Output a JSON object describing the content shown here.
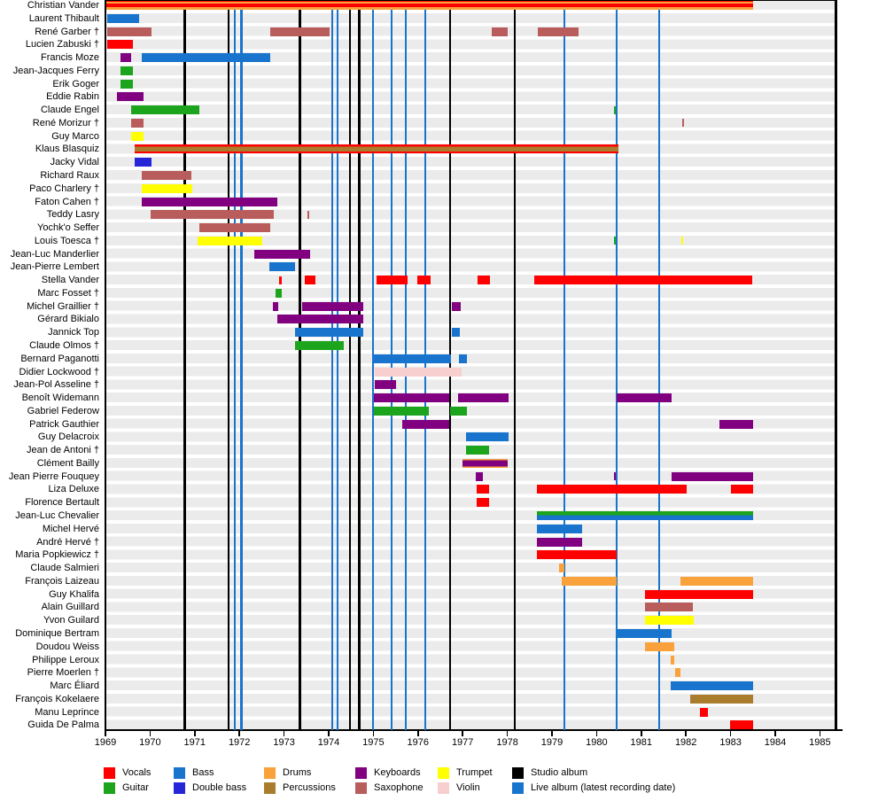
{
  "chart_data": {
    "type": "timeline",
    "title": "",
    "xlim": [
      1969,
      1985.37
    ],
    "x_ticks": [
      1969,
      1970,
      1971,
      1972,
      1973,
      1974,
      1975,
      1976,
      1977,
      1978,
      1979,
      1980,
      1981,
      1982,
      1983,
      1984,
      1985
    ],
    "instrument_colors": {
      "vocals": "#FF0000",
      "guitar": "#1CA51C",
      "bass": "#1874CD",
      "double_bass": "#2626D8",
      "drums": "#F9A13A",
      "percussions": "#AA7D2E",
      "keyboards": "#800080",
      "saxophone": "#B85C5C",
      "trumpet": "#FFFF00",
      "violin": "#F7CFCF",
      "studio": "#000000",
      "live": "#1874CD"
    },
    "album_lines": {
      "studio": [
        1970.77,
        1971.76,
        1973.35,
        1974.48,
        1974.69,
        1976.72,
        1978.17
      ],
      "live": [
        1971.9,
        1972.04,
        1974.08,
        1974.2,
        1974.99,
        1975.41,
        1975.73,
        1976.16,
        1979.28,
        1980.45,
        1981.4
      ]
    },
    "members": [
      {
        "name": "Christian Vander",
        "bars": [
          {
            "from": 1969.0,
            "to": 1983.5,
            "layers": [
              [
                "vocals",
                0,
                12
              ],
              [
                "drums",
                12,
                30
              ],
              [
                "vocals",
                30,
                72
              ],
              [
                "drums",
                72,
                100
              ]
            ]
          }
        ]
      },
      {
        "name": "Laurent Thibault",
        "bars": [
          {
            "from": 1969.04,
            "to": 1969.75,
            "color": "bass"
          }
        ]
      },
      {
        "name": "René Garber †",
        "bars": [
          {
            "from": 1969.04,
            "to": 1970.03,
            "color": "saxophone"
          },
          {
            "from": 1972.69,
            "to": 1974.02,
            "color": "saxophone"
          },
          {
            "from": 1977.65,
            "to": 1978.01,
            "color": "saxophone"
          },
          {
            "from": 1978.68,
            "to": 1979.6,
            "color": "saxophone"
          }
        ]
      },
      {
        "name": "Lucien Zabuski †",
        "bars": [
          {
            "from": 1969.04,
            "to": 1969.62,
            "color": "vocals"
          }
        ]
      },
      {
        "name": "Francis Moze",
        "bars": [
          {
            "from": 1969.34,
            "to": 1969.58,
            "color": "keyboards"
          },
          {
            "from": 1969.81,
            "to": 1972.69,
            "color": "bass"
          }
        ]
      },
      {
        "name": "Jean-Jacques Ferry",
        "bars": [
          {
            "from": 1969.34,
            "to": 1969.62,
            "color": "guitar"
          }
        ]
      },
      {
        "name": "Erik Goger",
        "bars": [
          {
            "from": 1969.34,
            "to": 1969.62,
            "color": "guitar"
          }
        ]
      },
      {
        "name": "Eddie Rabin",
        "bars": [
          {
            "from": 1969.26,
            "to": 1969.85,
            "color": "keyboards"
          }
        ]
      },
      {
        "name": "Claude Engel",
        "bars": [
          {
            "from": 1969.58,
            "to": 1971.1,
            "color": "guitar"
          },
          {
            "at": 1980.41,
            "color": "guitar",
            "tick": true
          }
        ]
      },
      {
        "name": "René Morizur †",
        "bars": [
          {
            "from": 1969.58,
            "to": 1969.85,
            "color": "saxophone"
          },
          {
            "at": 1981.94,
            "color": "saxophone",
            "tick": true
          }
        ]
      },
      {
        "name": "Guy Marco",
        "bars": [
          {
            "from": 1969.58,
            "to": 1969.85,
            "color": "trumpet"
          }
        ]
      },
      {
        "name": "Klaus Blasquiz",
        "bars": [
          {
            "from": 1969.65,
            "to": 1980.49,
            "layers": [
              [
                "vocals",
                0,
                25
              ],
              [
                "percussions",
                25,
                78
              ],
              [
                "vocals",
                78,
                100
              ]
            ]
          }
        ]
      },
      {
        "name": "Jacky Vidal",
        "bars": [
          {
            "from": 1969.65,
            "to": 1970.03,
            "color": "double_bass"
          }
        ]
      },
      {
        "name": "Richard Raux",
        "bars": [
          {
            "from": 1969.81,
            "to": 1970.92,
            "color": "saxophone"
          }
        ]
      },
      {
        "name": "Paco Charlery †",
        "bars": [
          {
            "from": 1969.81,
            "to": 1970.94,
            "color": "trumpet"
          }
        ]
      },
      {
        "name": "Faton Cahen †",
        "bars": [
          {
            "from": 1969.81,
            "to": 1972.85,
            "color": "keyboards"
          }
        ]
      },
      {
        "name": "Teddy Lasry",
        "bars": [
          {
            "from": 1970.01,
            "to": 1972.77,
            "color": "saxophone"
          },
          {
            "at": 1973.54,
            "color": "saxophone",
            "tick": true
          }
        ]
      },
      {
        "name": "Yochk'o Seffer",
        "bars": [
          {
            "from": 1971.1,
            "to": 1972.69,
            "color": "saxophone"
          }
        ]
      },
      {
        "name": "Louis Toesca †",
        "bars": [
          {
            "from": 1971.06,
            "to": 1972.51,
            "color": "trumpet"
          },
          {
            "at": 1980.41,
            "color": "guitar",
            "tick": true
          },
          {
            "at": 1981.92,
            "color": "trumpet",
            "tick": true
          }
        ]
      },
      {
        "name": "Jean-Luc Manderlier",
        "bars": [
          {
            "from": 1972.33,
            "to": 1973.58,
            "color": "keyboards"
          }
        ]
      },
      {
        "name": "Jean-Pierre Lembert",
        "bars": [
          {
            "from": 1972.67,
            "to": 1973.25,
            "color": "bass"
          }
        ]
      },
      {
        "name": "Stella Vander",
        "bars": [
          {
            "at": 1972.92,
            "color": "vocals",
            "tick": true
          },
          {
            "from": 1973.46,
            "to": 1973.7,
            "color": "vocals"
          },
          {
            "from": 1975.07,
            "to": 1975.77,
            "color": "vocals"
          },
          {
            "from": 1975.98,
            "to": 1976.28,
            "color": "vocals"
          },
          {
            "from": 1977.33,
            "to": 1977.61,
            "color": "vocals"
          },
          {
            "from": 1978.6,
            "to": 1983.48,
            "color": "vocals"
          }
        ]
      },
      {
        "name": "Marc Fosset †",
        "bars": [
          {
            "from": 1972.81,
            "to": 1972.95,
            "color": "guitar"
          }
        ]
      },
      {
        "name": "Michel Graillier †",
        "bars": [
          {
            "from": 1972.75,
            "to": 1972.87,
            "color": "keyboards"
          },
          {
            "from": 1973.4,
            "to": 1974.77,
            "color": "keyboards"
          },
          {
            "from": 1976.76,
            "to": 1976.96,
            "color": "keyboards"
          }
        ]
      },
      {
        "name": "Gérard Bikialo",
        "bars": [
          {
            "from": 1972.85,
            "to": 1974.77,
            "color": "keyboards"
          }
        ]
      },
      {
        "name": "Jannick Top",
        "bars": [
          {
            "from": 1973.25,
            "to": 1974.77,
            "color": "bass"
          },
          {
            "from": 1976.76,
            "to": 1976.94,
            "color": "bass"
          }
        ]
      },
      {
        "name": "Claude Olmos †",
        "bars": [
          {
            "from": 1973.25,
            "to": 1974.34,
            "color": "guitar"
          }
        ]
      },
      {
        "name": "Bernard Paganotti",
        "bars": [
          {
            "from": 1974.97,
            "to": 1976.74,
            "color": "bass"
          },
          {
            "from": 1976.92,
            "to": 1977.1,
            "color": "bass"
          }
        ]
      },
      {
        "name": "Didier Lockwood †",
        "bars": [
          {
            "from": 1975.03,
            "to": 1976.98,
            "color": "violin"
          }
        ]
      },
      {
        "name": "Jean-Pol Asseline †",
        "bars": [
          {
            "from": 1975.03,
            "to": 1975.51,
            "color": "keyboards"
          }
        ]
      },
      {
        "name": "Benoît Widemann",
        "bars": [
          {
            "from": 1975.01,
            "to": 1976.7,
            "color": "keyboards"
          },
          {
            "from": 1976.9,
            "to": 1978.03,
            "color": "keyboards"
          },
          {
            "from": 1980.45,
            "to": 1981.68,
            "color": "keyboards"
          }
        ]
      },
      {
        "name": "Gabriel Federow",
        "bars": [
          {
            "from": 1975.01,
            "to": 1976.24,
            "color": "guitar"
          },
          {
            "from": 1976.72,
            "to": 1977.1,
            "color": "guitar"
          }
        ]
      },
      {
        "name": "Patrick Gauthier",
        "bars": [
          {
            "from": 1975.65,
            "to": 1976.7,
            "color": "keyboards"
          },
          {
            "from": 1982.75,
            "to": 1983.5,
            "color": "keyboards"
          }
        ]
      },
      {
        "name": "Guy Delacroix",
        "bars": [
          {
            "from": 1977.08,
            "to": 1978.03,
            "color": "bass"
          }
        ]
      },
      {
        "name": "Jean de Antoni †",
        "bars": [
          {
            "from": 1977.08,
            "to": 1977.59,
            "color": "guitar"
          }
        ]
      },
      {
        "name": "Clément Bailly",
        "bars": [
          {
            "from": 1977.0,
            "to": 1978.01,
            "layers": [
              [
                "drums",
                0,
                15
              ],
              [
                "keyboards",
                15,
                85
              ],
              [
                "drums",
                85,
                100
              ]
            ]
          }
        ]
      },
      {
        "name": "Jean Pierre Fouquey",
        "bars": [
          {
            "from": 1977.29,
            "to": 1977.45,
            "color": "keyboards"
          },
          {
            "at": 1980.41,
            "color": "keyboards",
            "tick": true
          },
          {
            "from": 1981.68,
            "to": 1983.5,
            "color": "keyboards"
          }
        ]
      },
      {
        "name": "Liza Deluxe",
        "bars": [
          {
            "from": 1977.31,
            "to": 1977.59,
            "color": "vocals"
          },
          {
            "from": 1978.66,
            "to": 1982.02,
            "color": "vocals"
          },
          {
            "from": 1983.01,
            "to": 1983.5,
            "color": "vocals"
          }
        ]
      },
      {
        "name": "Florence Bertault",
        "bars": [
          {
            "from": 1977.31,
            "to": 1977.59,
            "color": "vocals"
          }
        ]
      },
      {
        "name": "Jean-Luc Chevalier",
        "bars": [
          {
            "from": 1978.66,
            "to": 1983.5,
            "layers": [
              [
                "guitar",
                0,
                45
              ],
              [
                "bass",
                45,
                100
              ]
            ]
          }
        ]
      },
      {
        "name": "Michel Hervé",
        "bars": [
          {
            "from": 1978.66,
            "to": 1979.67,
            "color": "bass"
          }
        ]
      },
      {
        "name": "André Hervé †",
        "bars": [
          {
            "from": 1978.66,
            "to": 1979.67,
            "color": "keyboards"
          }
        ]
      },
      {
        "name": "Maria Popkiewicz †",
        "bars": [
          {
            "from": 1978.66,
            "to": 1980.45,
            "color": "vocals"
          }
        ]
      },
      {
        "name": "Claude Salmieri",
        "bars": [
          {
            "from": 1979.16,
            "to": 1979.28,
            "color": "drums"
          }
        ]
      },
      {
        "name": "François Laizeau",
        "bars": [
          {
            "from": 1979.22,
            "to": 1980.45,
            "color": "drums"
          },
          {
            "from": 1981.88,
            "to": 1983.5,
            "color": "drums"
          }
        ]
      },
      {
        "name": "Guy Khalifa",
        "bars": [
          {
            "from": 1981.08,
            "to": 1983.5,
            "color": "vocals"
          }
        ]
      },
      {
        "name": "Alain Guillard",
        "bars": [
          {
            "from": 1981.08,
            "to": 1982.16,
            "color": "saxophone"
          }
        ]
      },
      {
        "name": "Yvon Guilard",
        "bars": [
          {
            "from": 1981.08,
            "to": 1982.18,
            "color": "trumpet"
          }
        ]
      },
      {
        "name": "Dominique Bertram",
        "bars": [
          {
            "from": 1980.45,
            "to": 1981.68,
            "color": "bass"
          }
        ]
      },
      {
        "name": "Doudou Weiss",
        "bars": [
          {
            "from": 1981.08,
            "to": 1981.74,
            "color": "drums"
          }
        ]
      },
      {
        "name": "Philippe Leroux",
        "bars": [
          {
            "from": 1981.66,
            "to": 1981.74,
            "color": "drums"
          }
        ]
      },
      {
        "name": "Pierre Moerlen †",
        "bars": [
          {
            "from": 1981.76,
            "to": 1981.88,
            "color": "drums"
          }
        ]
      },
      {
        "name": "Marc Éliard",
        "bars": [
          {
            "from": 1981.66,
            "to": 1983.5,
            "color": "bass"
          }
        ]
      },
      {
        "name": "François Kokelaere",
        "bars": [
          {
            "from": 1982.1,
            "to": 1983.5,
            "color": "percussions"
          }
        ]
      },
      {
        "name": "Manu Leprince",
        "bars": [
          {
            "from": 1982.31,
            "to": 1982.5,
            "color": "vocals"
          }
        ]
      },
      {
        "name": "Guida De Palma",
        "bars": [
          {
            "from": 1982.99,
            "to": 1983.5,
            "color": "vocals"
          }
        ]
      }
    ],
    "legend": [
      {
        "label": "Vocals",
        "key": "vocals"
      },
      {
        "label": "Guitar",
        "key": "guitar"
      },
      {
        "label": "Bass",
        "key": "bass"
      },
      {
        "label": "Double bass",
        "key": "double_bass"
      },
      {
        "label": "Drums",
        "key": "drums"
      },
      {
        "label": "Percussions",
        "key": "percussions"
      },
      {
        "label": "Keyboards",
        "key": "keyboards"
      },
      {
        "label": "Saxophone",
        "key": "saxophone"
      },
      {
        "label": "Trumpet",
        "key": "trumpet"
      },
      {
        "label": "Violin",
        "key": "violin"
      },
      {
        "label": "Studio album",
        "key": "studio"
      },
      {
        "label": "Live album (latest recording date)",
        "key": "live"
      }
    ]
  }
}
